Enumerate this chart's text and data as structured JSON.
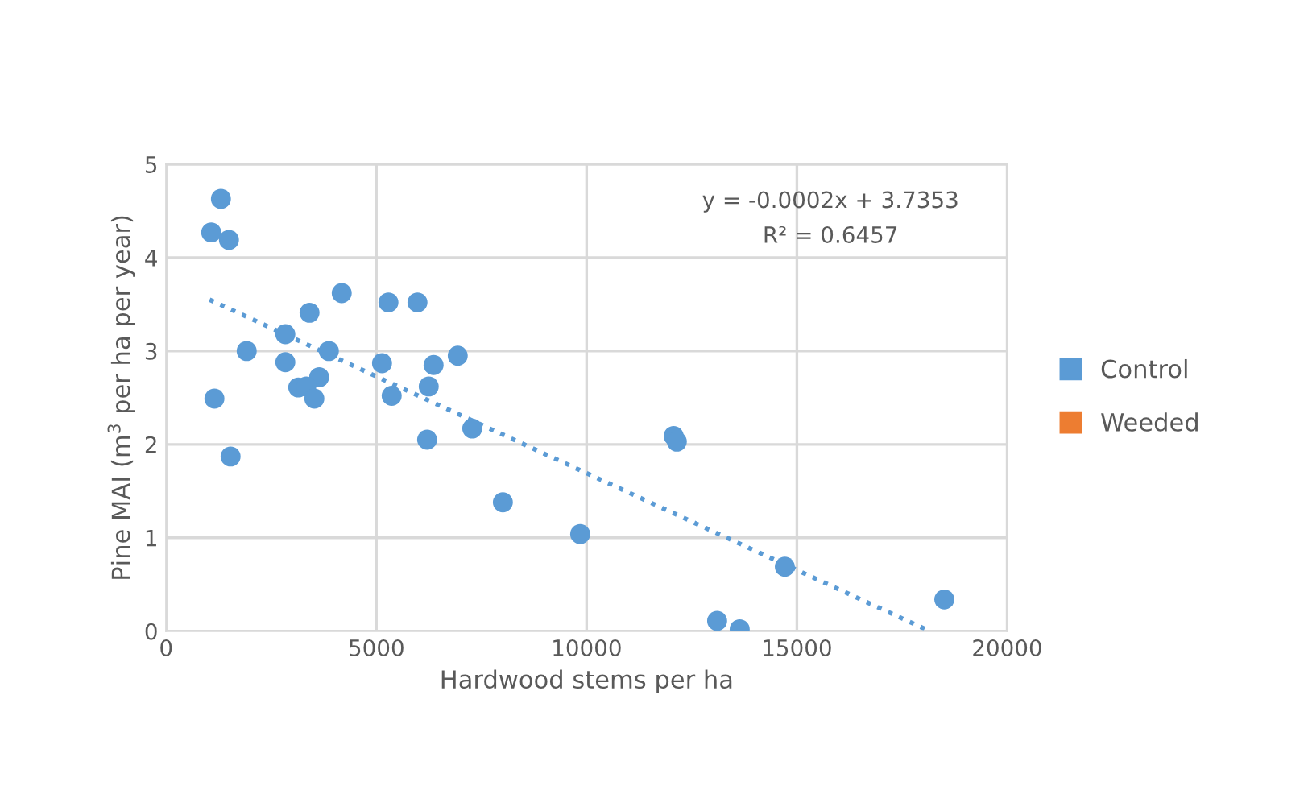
{
  "chart_data": {
    "type": "scatter",
    "xlabel": "Hardwood stems per ha",
    "ylabel": "Pine MAI (m$^{3}$ per ha per year)",
    "xlim": [
      0,
      20000
    ],
    "xticks": [
      0,
      5000,
      10000,
      15000,
      20000
    ],
    "ylim": [
      0,
      5
    ],
    "yticks": [
      0,
      1,
      2,
      3,
      4,
      5
    ],
    "grid": true,
    "legend": "right",
    "marker": "circle",
    "annotations": [
      "y = -0.0002x + 3.7353",
      "R² = 0.6457"
    ],
    "series": [
      {
        "name": "Control",
        "color": "#5b9bd5",
        "x": [
          1303,
          1073,
          1494,
          4176,
          5287,
          5977,
          3410,
          2835,
          3870,
          1916,
          2835,
          5134,
          6360,
          6935,
          3640,
          3142,
          3333,
          6245,
          3525,
          5364,
          1149,
          7280,
          6207,
          1533,
          8008,
          9847,
          12069,
          12145,
          13103,
          13640,
          14713,
          18506
        ],
        "values": [
          4.63,
          4.27,
          4.19,
          3.62,
          3.52,
          3.52,
          3.41,
          3.18,
          3.0,
          3.0,
          2.88,
          2.87,
          2.85,
          2.95,
          2.72,
          2.61,
          2.62,
          2.62,
          2.49,
          2.52,
          2.49,
          2.17,
          2.05,
          1.87,
          1.38,
          1.04,
          2.09,
          2.03,
          0.11,
          0.02,
          0.69,
          0.34
        ]
      },
      {
        "name": "Weeded",
        "color": "#ed7d31"
      },
      {
        "type": "line",
        "line_style": "dotted",
        "marker": "none",
        "color": "#5b9bd5",
        "x": [
          1034,
          18161
        ],
        "values": [
          3.55,
          0.0
        ]
      }
    ]
  }
}
